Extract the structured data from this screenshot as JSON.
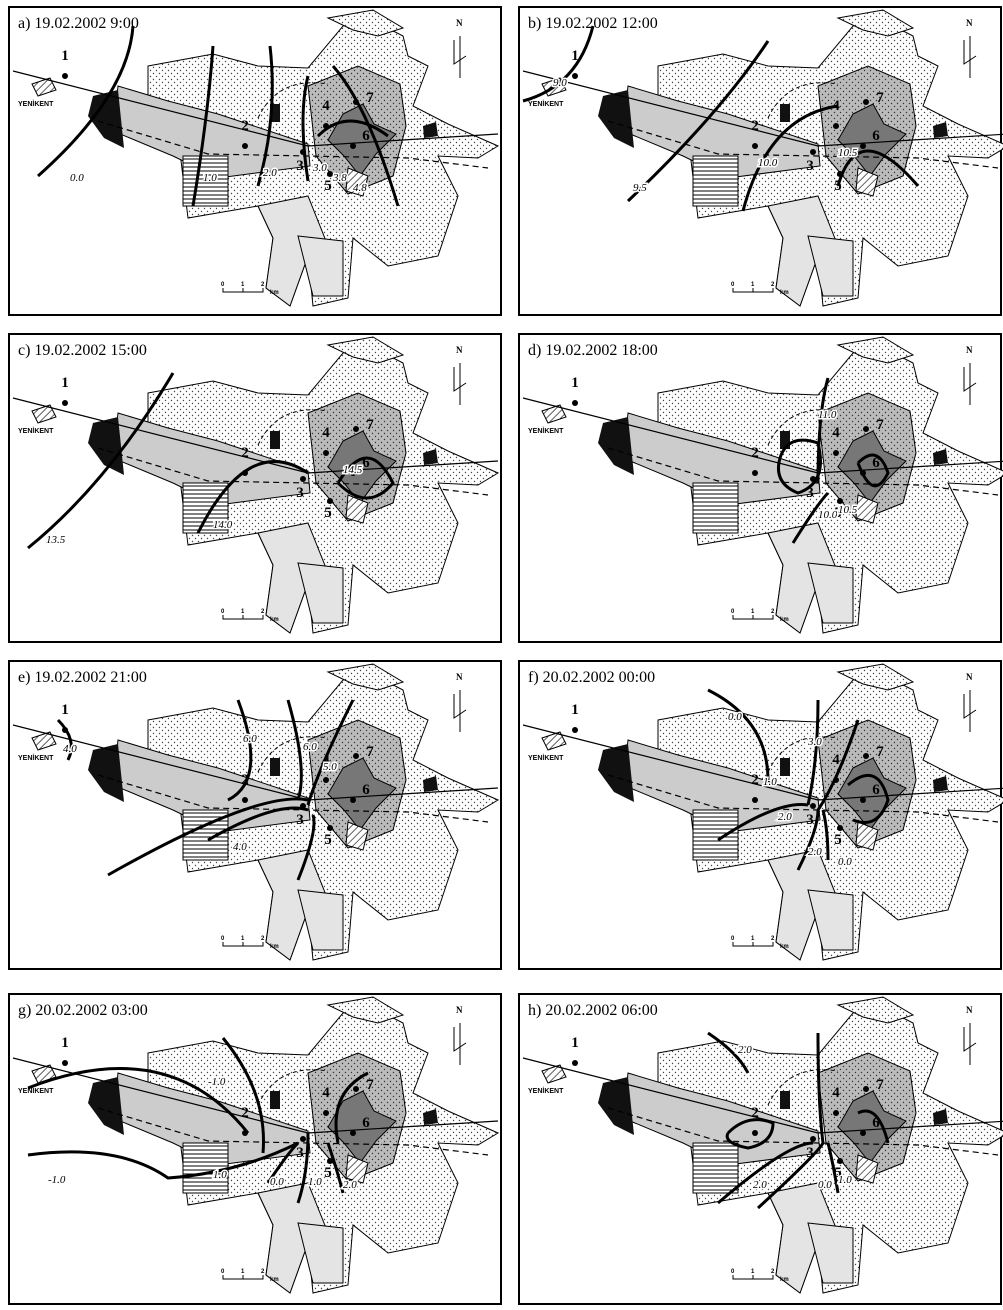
{
  "map": {
    "city": "YENİKENT",
    "north": "N",
    "stations": [
      "1",
      "2",
      "3",
      "4",
      "5",
      "6",
      "7"
    ],
    "scale": [
      "0",
      "1",
      "2",
      "km"
    ]
  },
  "panels": [
    {
      "title": "a) 19.02.2002 9:00",
      "isotherm_labels": [
        "0.0",
        "1.0",
        "2.0",
        "3.0",
        "3.8",
        "4.8"
      ]
    },
    {
      "title": "b) 19.02.2002 12:00",
      "isotherm_labels": [
        "9.0",
        "9.5",
        "10.0",
        "10.5"
      ]
    },
    {
      "title": "c) 19.02.2002 15:00",
      "isotherm_labels": [
        "13.5",
        "14.0",
        "14.5"
      ]
    },
    {
      "title": "d) 19.02.2002 18:00",
      "isotherm_labels": [
        "11.0",
        "10.0",
        "10.5"
      ]
    },
    {
      "title": "e) 19.02.2002 21:00",
      "isotherm_labels": [
        "4.0",
        "6.0",
        "4.0",
        "6.0",
        "5.0"
      ]
    },
    {
      "title": "f) 20.02.2002 00:00",
      "isotherm_labels": [
        "0.0",
        "1.0",
        "2.0",
        "3.0",
        "2.0",
        "0.0"
      ]
    },
    {
      "title": "g) 20.02.2002 03:00",
      "isotherm_labels": [
        "-1.0",
        "-1.0",
        "1.0",
        "0.0",
        "1.0",
        "2.0"
      ]
    },
    {
      "title": "h) 20.02.2002 06:00",
      "isotherm_labels": [
        "2.0",
        "1.0",
        "0.0",
        "2.0"
      ]
    }
  ]
}
